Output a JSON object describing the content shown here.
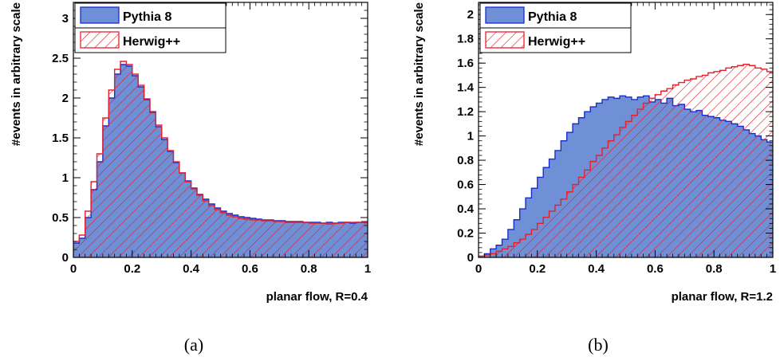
{
  "chart_data": [
    {
      "type": "histogram",
      "caption": "(a)",
      "xlabel": "planar flow, R=0.4",
      "ylabel": "#events in arbitrary scale",
      "xlim": [
        0,
        1
      ],
      "ylim": [
        0,
        3.2
      ],
      "xticks": [
        "0",
        "0.2",
        "0.4",
        "0.6",
        "0.8",
        "1"
      ],
      "yticks": [
        "0",
        "0.5",
        "1",
        "1.5",
        "2",
        "2.5",
        "3"
      ],
      "legend_position": "top-left",
      "bins": 50,
      "series": [
        {
          "name": "Pythia 8",
          "style": "filled",
          "fill": "#6f8fd6",
          "line": "#1a2ccc",
          "values": [
            0.18,
            0.24,
            0.5,
            0.85,
            1.2,
            1.65,
            2.0,
            2.3,
            2.42,
            2.4,
            2.28,
            2.14,
            1.98,
            1.82,
            1.64,
            1.48,
            1.33,
            1.19,
            1.06,
            0.96,
            0.87,
            0.79,
            0.73,
            0.67,
            0.62,
            0.58,
            0.55,
            0.53,
            0.51,
            0.5,
            0.49,
            0.48,
            0.47,
            0.47,
            0.46,
            0.46,
            0.45,
            0.45,
            0.45,
            0.44,
            0.44,
            0.44,
            0.43,
            0.44,
            0.43,
            0.44,
            0.44,
            0.43,
            0.44,
            0.44
          ]
        },
        {
          "name": "Herwig++",
          "style": "hatched",
          "fill": "none",
          "line": "#e8202a",
          "values": [
            0.2,
            0.28,
            0.58,
            0.95,
            1.3,
            1.75,
            2.1,
            2.36,
            2.46,
            2.42,
            2.3,
            2.16,
            1.99,
            1.83,
            1.66,
            1.5,
            1.34,
            1.2,
            1.06,
            0.95,
            0.86,
            0.78,
            0.71,
            0.65,
            0.6,
            0.56,
            0.53,
            0.51,
            0.49,
            0.48,
            0.47,
            0.47,
            0.46,
            0.46,
            0.45,
            0.45,
            0.44,
            0.44,
            0.44,
            0.44,
            0.43,
            0.43,
            0.43,
            0.42,
            0.43,
            0.43,
            0.44,
            0.44,
            0.44,
            0.45
          ]
        }
      ]
    },
    {
      "type": "histogram",
      "caption": "(b)",
      "xlabel": "planar flow, R=1.2",
      "ylabel": "#events in arbitrary scale",
      "xlim": [
        0,
        1
      ],
      "ylim": [
        0,
        2.1
      ],
      "xticks": [
        "0",
        "0.2",
        "0.4",
        "0.6",
        "0.8",
        "1"
      ],
      "yticks": [
        "0",
        "0.2",
        "0.4",
        "0.6",
        "0.8",
        "1",
        "1.2",
        "1.4",
        "1.6",
        "1.8",
        "2"
      ],
      "legend_position": "top-left",
      "bins": 50,
      "series": [
        {
          "name": "Pythia 8",
          "style": "filled",
          "fill": "#6f8fd6",
          "line": "#1a2ccc",
          "values": [
            0.01,
            0.03,
            0.07,
            0.1,
            0.15,
            0.23,
            0.31,
            0.4,
            0.49,
            0.57,
            0.66,
            0.74,
            0.81,
            0.88,
            0.96,
            1.03,
            1.1,
            1.15,
            1.2,
            1.24,
            1.27,
            1.3,
            1.32,
            1.31,
            1.33,
            1.32,
            1.3,
            1.32,
            1.33,
            1.28,
            1.3,
            1.27,
            1.31,
            1.25,
            1.26,
            1.22,
            1.2,
            1.21,
            1.17,
            1.16,
            1.15,
            1.13,
            1.12,
            1.1,
            1.08,
            1.05,
            1.02,
            1.0,
            0.97,
            0.95
          ]
        },
        {
          "name": "Herwig++",
          "style": "hatched",
          "fill": "none",
          "line": "#e8202a",
          "values": [
            0.01,
            0.02,
            0.03,
            0.05,
            0.07,
            0.09,
            0.12,
            0.15,
            0.19,
            0.23,
            0.28,
            0.33,
            0.38,
            0.43,
            0.48,
            0.54,
            0.6,
            0.66,
            0.72,
            0.79,
            0.84,
            0.9,
            0.96,
            1.01,
            1.07,
            1.12,
            1.17,
            1.22,
            1.27,
            1.31,
            1.34,
            1.37,
            1.39,
            1.42,
            1.44,
            1.46,
            1.47,
            1.49,
            1.5,
            1.52,
            1.53,
            1.54,
            1.56,
            1.57,
            1.58,
            1.59,
            1.58,
            1.56,
            1.55,
            1.53
          ]
        }
      ]
    }
  ]
}
